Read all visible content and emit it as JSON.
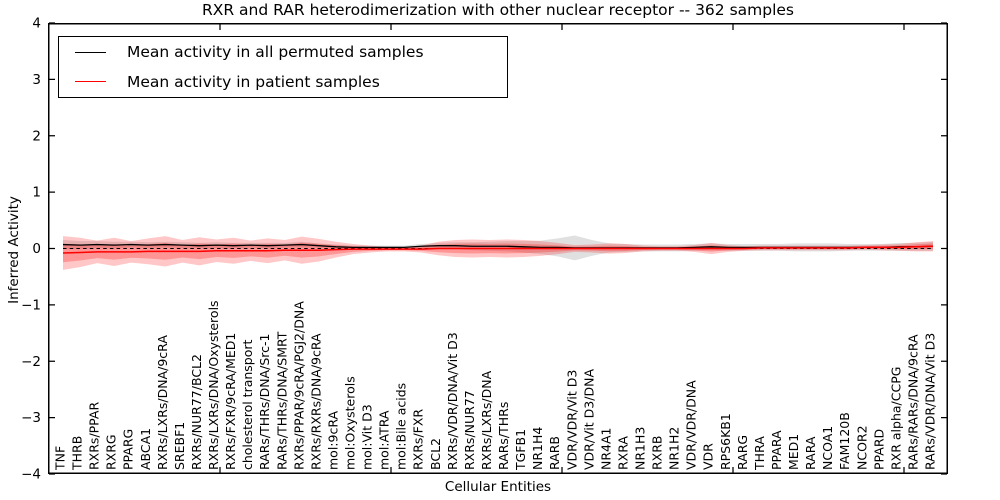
{
  "chart_data": {
    "type": "line",
    "title": "RXR and RAR heterodimerization with other nuclear receptor -- 362 samples",
    "xlabel": "Cellular Entities",
    "ylabel": "Inferred Activity",
    "ylim": [
      -4,
      4
    ],
    "yticks": [
      4,
      3,
      2,
      1,
      0,
      -1,
      -2,
      -3,
      -4
    ],
    "grid": false,
    "legend_position": "upper left",
    "legend": [
      {
        "label": "Mean activity in all permuted samples",
        "color": "#000000"
      },
      {
        "label": "Mean activity in patient samples",
        "color": "#ff0000"
      }
    ],
    "zero_line": {
      "value": 0,
      "style": "dashed",
      "color": "#000000"
    },
    "colors": {
      "patient": "#ff0000",
      "permuted": "#000000",
      "patient_band": "rgba(255,0,0,0.22)",
      "permuted_band": "rgba(0,0,0,0.12)",
      "background": "#ffffff"
    },
    "categories": [
      "TNF",
      "THRB",
      "RXRs/PPAR",
      "RXRG",
      "PPARG",
      "ABCA1",
      "RXRs/LXRs/DNA/9cRA",
      "SREBF1",
      "RXRs/NUR77/BCL2",
      "RXRs/LXRs/DNA/Oxysterols",
      "RXRs/FXR/9cRA/MED1",
      "cholesterol transport",
      "RARs/THRs/DNA/Src-1",
      "RARs/THRs/DNA/SMRT",
      "RXRs/PPAR/9cRA/PGJ2/DNA",
      "RXRs/RXRs/DNA/9cRA",
      "mol:9cRA",
      "mol:Oxysterols",
      "mol:Vit D3",
      "mol:ATRA",
      "mol:Bile acids",
      "RXRs/FXR",
      "BCL2",
      "RXRs/VDR/DNA/Vit D3",
      "RXRs/NUR77",
      "RXRs/LXRs/DNA",
      "RARs/THRs",
      "TGFB1",
      "NR1H4",
      "RARB",
      "VDR/VDR/Vit D3",
      "VDR/Vit D3/DNA",
      "NR4A1",
      "RXRA",
      "NR1H3",
      "RXRB",
      "NR1H2",
      "VDR/VDR/DNA",
      "VDR",
      "RPS6KB1",
      "RARG",
      "THRA",
      "PPARA",
      "MED1",
      "RARA",
      "NCOA1",
      "FAM120B",
      "NCOR2",
      "PPARD",
      "RXR alpha/CCPG",
      "RARs/RARs/DNA/9cRA",
      "RARs/VDR/DNA/Vit D3"
    ],
    "series": [
      {
        "name": "Mean activity in all permuted samples",
        "color": "#000000",
        "style": "solid",
        "values": [
          0.07,
          0.06,
          0.07,
          0.06,
          0.07,
          0.06,
          0.07,
          0.06,
          0.05,
          0.06,
          0.05,
          0.06,
          0.05,
          0.06,
          0.07,
          0.05,
          0.03,
          0.02,
          0.02,
          0.02,
          0.02,
          0.04,
          0.05,
          0.05,
          0.04,
          0.04,
          0.04,
          0.03,
          0.02,
          0.02,
          0.01,
          0.01,
          0.01,
          0.01,
          0.01,
          0.01,
          0.01,
          0.02,
          0.03,
          0.02,
          0.02,
          0.02,
          0.02,
          0.02,
          0.02,
          0.02,
          0.02,
          0.02,
          0.02,
          0.03,
          0.03,
          0.04
        ]
      },
      {
        "name": "Mean activity in patient samples",
        "color": "#ff0000",
        "style": "solid",
        "values": [
          -0.08,
          -0.07,
          -0.06,
          -0.06,
          -0.06,
          -0.05,
          -0.05,
          -0.05,
          -0.05,
          -0.04,
          -0.04,
          -0.04,
          -0.04,
          -0.03,
          -0.03,
          -0.03,
          -0.02,
          -0.01,
          -0.01,
          -0.01,
          -0.01,
          -0.01,
          0,
          0,
          0,
          0,
          0,
          0,
          0,
          0,
          0,
          0,
          0,
          0,
          0,
          0,
          0,
          0,
          0,
          0,
          0,
          0.01,
          0.01,
          0.01,
          0.01,
          0.01,
          0.01,
          0.02,
          0.02,
          0.02,
          0.03,
          0.04
        ]
      }
    ],
    "bands": [
      {
        "name": "permuted-samples-spread",
        "around_series": 0,
        "color": "#000000",
        "alpha": 0.12,
        "half_widths": [
          0.08,
          0.07,
          0.06,
          0.06,
          0.05,
          0.05,
          0.05,
          0.05,
          0.05,
          0.05,
          0.05,
          0.04,
          0.05,
          0.04,
          0.05,
          0.04,
          0.04,
          0.03,
          0.03,
          0.03,
          0.03,
          0.04,
          0.05,
          0.06,
          0.07,
          0.08,
          0.09,
          0.1,
          0.12,
          0.16,
          0.22,
          0.14,
          0.08,
          0.07,
          0.06,
          0.06,
          0.06,
          0.06,
          0.06,
          0.06,
          0.06,
          0.06,
          0.06,
          0.07,
          0.07,
          0.07,
          0.06,
          0.06,
          0.06,
          0.07,
          0.07,
          0.08
        ]
      },
      {
        "name": "patient-samples-spread",
        "around_series": 1,
        "color": "#ff0000",
        "alpha": 0.22,
        "half_widths": [
          0.3,
          0.26,
          0.2,
          0.25,
          0.19,
          0.23,
          0.27,
          0.2,
          0.25,
          0.2,
          0.23,
          0.18,
          0.22,
          0.18,
          0.24,
          0.2,
          0.14,
          0.09,
          0.06,
          0.04,
          0.04,
          0.06,
          0.12,
          0.15,
          0.16,
          0.15,
          0.16,
          0.15,
          0.13,
          0.1,
          0.06,
          0.07,
          0.09,
          0.08,
          0.05,
          0.04,
          0.04,
          0.06,
          0.1,
          0.06,
          0.04,
          0.04,
          0.04,
          0.04,
          0.04,
          0.04,
          0.04,
          0.04,
          0.05,
          0.06,
          0.08,
          0.09
        ]
      }
    ]
  }
}
